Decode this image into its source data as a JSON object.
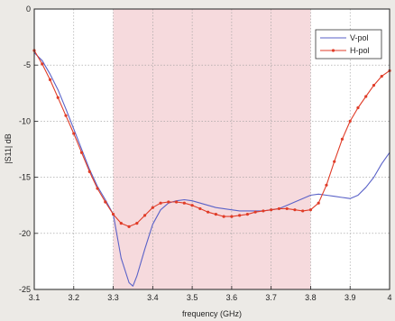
{
  "chart_data": {
    "type": "line",
    "title": "",
    "xlabel": "frequency (GHz)",
    "ylabel": "|S11| dB",
    "xlim": [
      3.1,
      4.0
    ],
    "ylim": [
      -25,
      0
    ],
    "x_ticks": [
      "3.1",
      "3.2",
      "3.3",
      "3.4",
      "3.5",
      "3.6",
      "3.7",
      "3.8",
      "3.9",
      "4"
    ],
    "y_ticks": [
      "0",
      "-5",
      "-10",
      "-15",
      "-20",
      "-25"
    ],
    "grid": "dotted",
    "legend_position": "top-right",
    "shaded_band": {
      "x_start": 3.3,
      "x_end": 3.8,
      "color": "#f6dadd"
    },
    "series": [
      {
        "name": "V-pol",
        "color": "#5a62c8",
        "marker": "none",
        "x": [
          3.1,
          3.12,
          3.14,
          3.16,
          3.18,
          3.2,
          3.22,
          3.24,
          3.26,
          3.28,
          3.3,
          3.32,
          3.34,
          3.35,
          3.36,
          3.38,
          3.4,
          3.42,
          3.44,
          3.46,
          3.48,
          3.5,
          3.52,
          3.54,
          3.56,
          3.58,
          3.6,
          3.62,
          3.64,
          3.66,
          3.68,
          3.7,
          3.72,
          3.74,
          3.76,
          3.78,
          3.8,
          3.82,
          3.84,
          3.86,
          3.88,
          3.9,
          3.92,
          3.94,
          3.96,
          3.98,
          4.0
        ],
        "y": [
          -3.9,
          -4.6,
          -5.8,
          -7.2,
          -8.9,
          -10.7,
          -12.5,
          -14.3,
          -15.8,
          -17.0,
          -18.3,
          -22.2,
          -24.4,
          -24.7,
          -23.8,
          -21.4,
          -19.2,
          -17.9,
          -17.3,
          -17.1,
          -17.0,
          -17.1,
          -17.3,
          -17.5,
          -17.7,
          -17.8,
          -17.9,
          -18.0,
          -18.0,
          -18.0,
          -18.0,
          -17.9,
          -17.8,
          -17.5,
          -17.2,
          -16.9,
          -16.6,
          -16.5,
          -16.6,
          -16.7,
          -16.8,
          -16.9,
          -16.6,
          -15.9,
          -15.0,
          -13.8,
          -12.8
        ]
      },
      {
        "name": "H-pol",
        "color": "#e03c28",
        "marker": "dot",
        "x": [
          3.1,
          3.12,
          3.14,
          3.16,
          3.18,
          3.2,
          3.22,
          3.24,
          3.26,
          3.28,
          3.3,
          3.32,
          3.34,
          3.36,
          3.38,
          3.4,
          3.42,
          3.44,
          3.46,
          3.48,
          3.5,
          3.52,
          3.54,
          3.56,
          3.58,
          3.6,
          3.62,
          3.64,
          3.66,
          3.68,
          3.7,
          3.72,
          3.74,
          3.76,
          3.78,
          3.8,
          3.82,
          3.84,
          3.86,
          3.88,
          3.9,
          3.92,
          3.94,
          3.96,
          3.98,
          4.0
        ],
        "y": [
          -3.7,
          -4.9,
          -6.3,
          -7.9,
          -9.5,
          -11.1,
          -12.8,
          -14.5,
          -16.0,
          -17.2,
          -18.3,
          -19.1,
          -19.4,
          -19.1,
          -18.4,
          -17.7,
          -17.3,
          -17.2,
          -17.2,
          -17.3,
          -17.5,
          -17.8,
          -18.1,
          -18.3,
          -18.5,
          -18.5,
          -18.4,
          -18.3,
          -18.1,
          -18.0,
          -17.9,
          -17.8,
          -17.8,
          -17.9,
          -18.0,
          -17.9,
          -17.3,
          -15.7,
          -13.6,
          -11.6,
          -10.0,
          -8.8,
          -7.8,
          -6.8,
          -6.0,
          -5.5
        ]
      }
    ]
  }
}
